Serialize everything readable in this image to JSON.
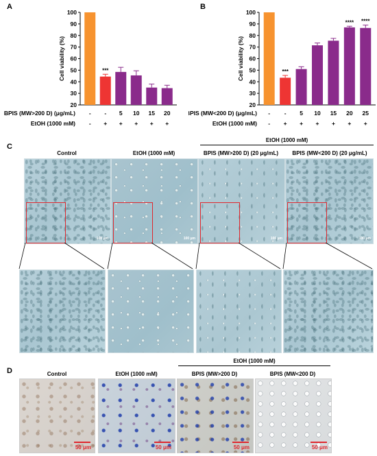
{
  "panels": {
    "A": "A",
    "B": "B",
    "C": "C",
    "D": "D"
  },
  "chart_data": [
    {
      "type": "bar",
      "ylabel": "Cell viability (%)",
      "ylim": [
        20,
        100
      ],
      "yticks": [
        20,
        30,
        40,
        50,
        60,
        70,
        80,
        90,
        100
      ],
      "row1_label": "BPIS (MW>200 D) (μg/mL)",
      "row2_label": "EtOH (1000 mM)",
      "row1": [
        "-",
        "-",
        "5",
        "10",
        "15",
        "20"
      ],
      "row2": [
        "-",
        "+",
        "+",
        "+",
        "+",
        "+"
      ],
      "values": [
        100,
        44.5,
        48.5,
        45.5,
        35,
        34.5
      ],
      "errors": [
        0,
        2,
        4,
        4,
        3,
        2.5
      ],
      "colors": [
        "#f7932f",
        "#ee3533",
        "#8a2b8b",
        "#8a2b8b",
        "#8a2b8b",
        "#8a2b8b"
      ],
      "annotations": [
        "",
        "***",
        "",
        "",
        "",
        ""
      ]
    },
    {
      "type": "bar",
      "ylabel": "Cell viability (%)",
      "ylim": [
        20,
        100
      ],
      "yticks": [
        20,
        30,
        40,
        50,
        60,
        70,
        80,
        90,
        100
      ],
      "row1_label": "BPIS (MW<200 D) (μg/mL)",
      "row2_label": "EtOH (1000 mM)",
      "row1": [
        "-",
        "-",
        "5",
        "10",
        "15",
        "20",
        "25"
      ],
      "row2": [
        "-",
        "+",
        "+",
        "+",
        "+",
        "+",
        "+"
      ],
      "values": [
        100,
        43.5,
        51,
        71.5,
        75.5,
        87,
        86.5
      ],
      "errors": [
        0,
        2,
        2,
        2,
        2,
        1,
        2.5
      ],
      "colors": [
        "#f7932f",
        "#ee3533",
        "#8a2b8b",
        "#8a2b8b",
        "#8a2b8b",
        "#8a2b8b",
        "#8a2b8b"
      ],
      "annotations": [
        "",
        "***",
        "",
        "",
        "",
        "****",
        "****"
      ]
    }
  ],
  "panelC": {
    "group_label": "EtOH (1000 mM)",
    "captions": [
      "Control",
      "EtOH (1000 mM)",
      "BPIS (MW>200 D) (20 μg/mL)",
      "BPIS (MW<200 D) (20 μg/mL)"
    ],
    "scale": "100 μm"
  },
  "panelD": {
    "group_label": "EtOH (1000 mM)",
    "captions": [
      "Control",
      "EtOH (1000 mM)",
      "BPIS (MW>200 D)",
      "BPIS (MW<200 D)"
    ],
    "scale": "50 μm"
  }
}
